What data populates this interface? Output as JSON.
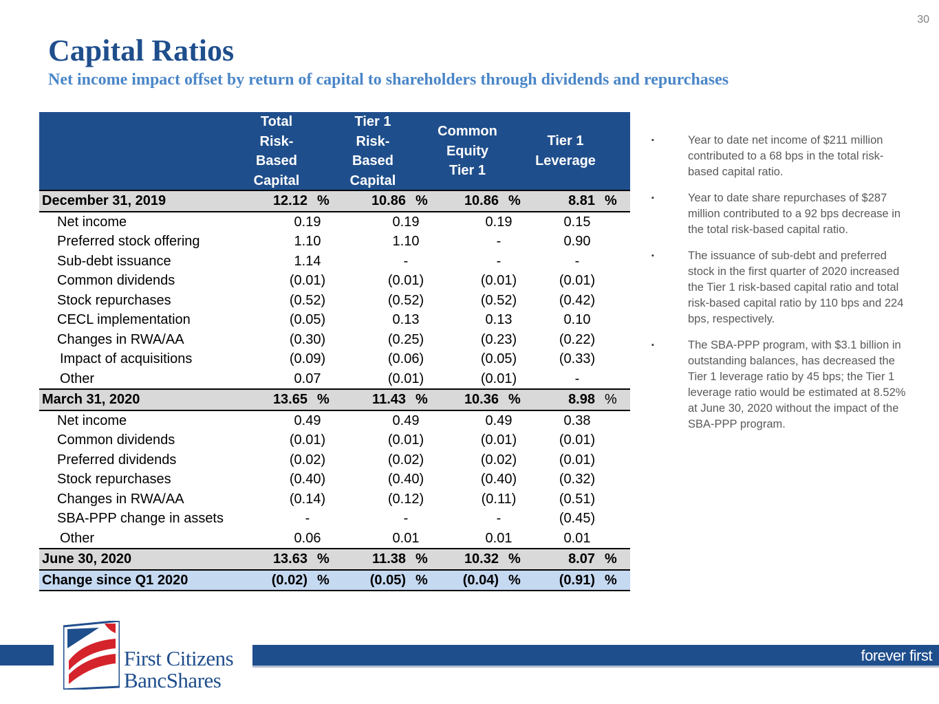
{
  "page_number": "30",
  "title": "Capital Ratios",
  "subtitle": "Net income impact offset by return of capital to shareholders through dividends and repurchases",
  "table": {
    "headers": [
      [
        "Total",
        "Risk-",
        "Based",
        "Capital"
      ],
      [
        "Tier 1",
        "Risk-",
        "Based",
        "Capital"
      ],
      [
        "Common",
        "Equity",
        "Tier 1"
      ],
      [
        "Tier 1",
        "Leverage"
      ]
    ],
    "rows": [
      {
        "kind": "milestone",
        "label": "December 31, 2019",
        "values": [
          "12.12",
          "10.86",
          "10.86",
          "8.81"
        ],
        "pct": [
          "%",
          "%",
          "%",
          "%"
        ]
      },
      {
        "kind": "item",
        "label": "Net income",
        "values": [
          "0.19",
          "0.19",
          "0.19",
          "0.15"
        ]
      },
      {
        "kind": "item",
        "label": "Preferred stock offering",
        "values": [
          "1.10",
          "1.10",
          "-",
          "0.90"
        ]
      },
      {
        "kind": "item",
        "label": "Sub-debt issuance",
        "values": [
          "1.14",
          "-",
          "-",
          "-"
        ]
      },
      {
        "kind": "item",
        "label": "Common dividends",
        "values": [
          "(0.01)",
          "(0.01)",
          "(0.01)",
          "(0.01)"
        ]
      },
      {
        "kind": "item",
        "label": "Stock repurchases",
        "values": [
          "(0.52)",
          "(0.52)",
          "(0.52)",
          "(0.42)"
        ]
      },
      {
        "kind": "item",
        "label": "CECL implementation",
        "values": [
          "(0.05)",
          "0.13",
          "0.13",
          "0.10"
        ]
      },
      {
        "kind": "item",
        "label": "Changes in RWA/AA",
        "values": [
          "(0.30)",
          "(0.25)",
          "(0.23)",
          "(0.22)"
        ]
      },
      {
        "kind": "item",
        "label": "Impact of acquisitions",
        "values": [
          "(0.09)",
          "(0.06)",
          "(0.05)",
          "(0.33)"
        ]
      },
      {
        "kind": "item",
        "label": "Other",
        "values": [
          "0.07",
          "(0.01)",
          "(0.01)",
          "-"
        ]
      },
      {
        "kind": "milestone",
        "label": "March 31, 2020",
        "values": [
          "13.65",
          "11.43",
          "10.36",
          "8.98"
        ],
        "pct": [
          "%",
          "%",
          "%",
          "%"
        ]
      },
      {
        "kind": "item",
        "label": "Net income",
        "values": [
          "0.49",
          "0.49",
          "0.49",
          "0.38"
        ]
      },
      {
        "kind": "item",
        "label": "Common dividends",
        "values": [
          "(0.01)",
          "(0.01)",
          "(0.01)",
          "(0.01)"
        ]
      },
      {
        "kind": "item",
        "label": "Preferred dividends",
        "values": [
          "(0.02)",
          "(0.02)",
          "(0.02)",
          "(0.01)"
        ]
      },
      {
        "kind": "item",
        "label": "Stock repurchases",
        "values": [
          "(0.40)",
          "(0.40)",
          "(0.40)",
          "(0.32)"
        ]
      },
      {
        "kind": "item",
        "label": "Changes in RWA/AA",
        "values": [
          "(0.14)",
          "(0.12)",
          "(0.11)",
          "(0.51)"
        ]
      },
      {
        "kind": "item",
        "label": "SBA-PPP change in assets",
        "values": [
          "-",
          "-",
          "-",
          "(0.45)"
        ]
      },
      {
        "kind": "item",
        "label": "Other",
        "values": [
          "0.06",
          "0.01",
          "0.01",
          "0.01"
        ]
      },
      {
        "kind": "milestone",
        "label": "June 30, 2020",
        "values": [
          "13.63",
          "11.38",
          "10.32",
          "8.07"
        ],
        "pct": [
          "%",
          "%",
          "%",
          "%"
        ]
      },
      {
        "kind": "change",
        "label": "Change since Q1 2020",
        "values": [
          "(0.02)",
          "(0.05)",
          "(0.04)",
          "(0.91)"
        ],
        "pct": [
          "%",
          "%",
          "%",
          "%"
        ]
      }
    ]
  },
  "bullets": [
    "Year to date net income of $211 million contributed to a 68 bps in the total risk-based capital ratio.",
    "Year to date share repurchases of $287 million contributed to a 92 bps decrease in the total risk-based capital ratio.",
    "The issuance of sub-debt and preferred stock in the first quarter of 2020 increased the Tier 1 risk-based capital ratio and total risk-based capital ratio by 110 bps and 224 bps, respectively.",
    "The SBA-PPP program, with $3.1 billion in outstanding balances, has decreased the Tier 1 leverage ratio by 45 bps; the Tier 1 leverage ratio would be estimated at 8.52% at June 30, 2020 without the impact of the SBA-PPP program."
  ],
  "bullet_marker": "▪",
  "footer": {
    "logo_line1": "First Citizens",
    "logo_line2": "BancShares",
    "tagline": "forever first"
  },
  "colors": {
    "brand_blue": "#1f4e8c",
    "subtitle_blue": "#4a86c8",
    "logo_red": "#d4232b"
  }
}
